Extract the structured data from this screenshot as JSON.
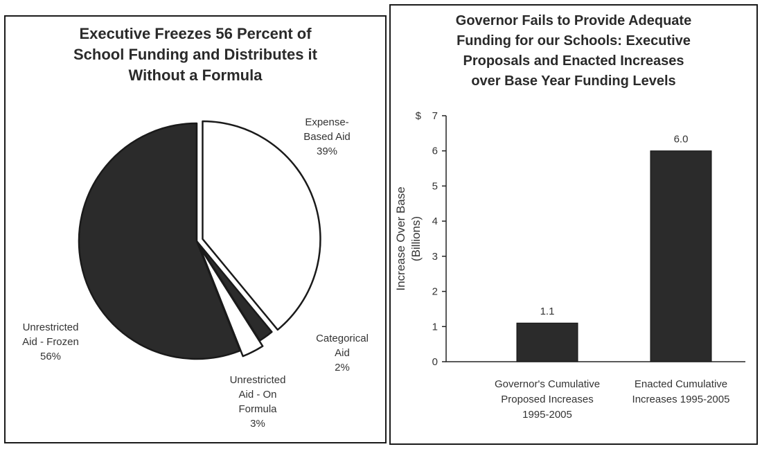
{
  "chart_data": [
    {
      "type": "pie",
      "title": "Executive Freezes 56 Percent of\nSchool Funding and Distributes it\nWithout a Formula",
      "slices": [
        {
          "label": "Expense-\nBased Aid\n39%",
          "value": 39,
          "color": "#ffffff"
        },
        {
          "label": "Categorical\nAid\n2%",
          "value": 2,
          "color": "#2b2b2b"
        },
        {
          "label": "Unrestricted\nAid - On\nFormula\n3%",
          "value": 3,
          "color": "#ffffff"
        },
        {
          "label": "Unrestricted\nAid - Frozen\n56%",
          "value": 56,
          "color": "#2b2b2b"
        }
      ]
    },
    {
      "type": "bar",
      "title": "Governor Fails to Provide Adequate\nFunding for our Schools: Executive\nProposals and Enacted Increases\nover Base Year Funding Levels",
      "categories": [
        "Governor's Cumulative\nProposed Increases\n1995-2005",
        "Enacted Cumulative\nIncreases 1995-2005"
      ],
      "values": [
        1.1,
        6.0
      ],
      "data_labels": [
        "1.1",
        "6.0"
      ],
      "ylabel": "Increase Over Base\n(Billions)",
      "y_unit": "$",
      "ylim": [
        0,
        7
      ],
      "yticks": [
        0,
        1,
        2,
        3,
        4,
        5,
        6,
        7
      ],
      "bar_color": "#2b2b2b",
      "grid": false
    }
  ]
}
